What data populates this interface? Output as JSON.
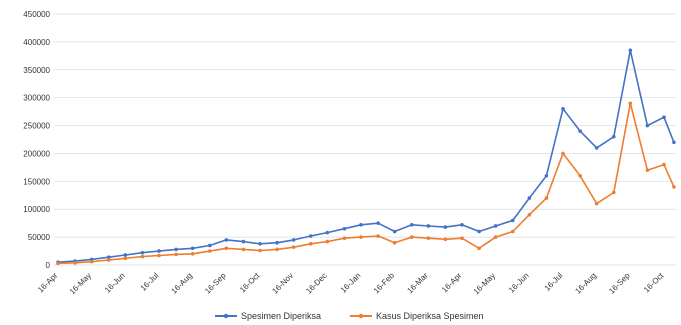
{
  "chart_data": {
    "type": "line",
    "title": "",
    "xlabel": "",
    "ylabel": "",
    "ylim": [
      0,
      450000
    ],
    "yticks": [
      0,
      50000,
      100000,
      150000,
      200000,
      250000,
      300000,
      350000,
      400000,
      450000
    ],
    "ytick_labels": [
      "0",
      "50000",
      "100000",
      "150000",
      "200000",
      "250000",
      "300000",
      "350000",
      "400000",
      "450000"
    ],
    "xtick_labels": [
      "16-Apr",
      "16-May",
      "16-Jun",
      "16-Jul",
      "16-Aug",
      "16-Sep",
      "16-Oct",
      "16-Nov",
      "16-Dec",
      "16-Jan",
      "16-Feb",
      "16-Mar",
      "16-Apr",
      "16-May",
      "16-Jun",
      "16-Jul",
      "16-Aug",
      "16-Sep",
      "16-Oct"
    ],
    "grid": true,
    "legend_position": "bottom",
    "series": [
      {
        "name": "Spesimen Diperiksa",
        "color": "#4472C4",
        "x": [
          "16-Apr",
          "1-May",
          "16-May",
          "1-Jun",
          "16-Jun",
          "1-Jul",
          "16-Jul",
          "1-Aug",
          "16-Aug",
          "1-Sep",
          "16-Sep",
          "1-Oct",
          "16-Oct",
          "1-Nov",
          "16-Nov",
          "1-Dec",
          "16-Dec",
          "1-Jan",
          "16-Jan",
          "1-Feb",
          "16-Feb",
          "1-Mar",
          "16-Mar",
          "1-Apr",
          "16-Apr",
          "1-May",
          "16-May",
          "1-Jun",
          "16-Jun",
          "1-Jul",
          "16-Jul",
          "1-Aug",
          "16-Aug",
          "1-Sep",
          "16-Sep",
          "1-Oct",
          "16-Oct",
          "25-Oct"
        ],
        "values": [
          5000,
          7000,
          10000,
          14000,
          18000,
          22000,
          25000,
          28000,
          30000,
          35000,
          45000,
          42000,
          38000,
          40000,
          45000,
          52000,
          58000,
          65000,
          72000,
          75000,
          60000,
          72000,
          70000,
          68000,
          72000,
          60000,
          70000,
          80000,
          120000,
          160000,
          280000,
          240000,
          210000,
          230000,
          385000,
          250000,
          265000,
          220000
        ]
      },
      {
        "name": "Kasus Diperiksa Spesimen",
        "color": "#ED7D31",
        "x": [
          "16-Apr",
          "1-May",
          "16-May",
          "1-Jun",
          "16-Jun",
          "1-Jul",
          "16-Jul",
          "1-Aug",
          "16-Aug",
          "1-Sep",
          "16-Sep",
          "1-Oct",
          "16-Oct",
          "1-Nov",
          "16-Nov",
          "1-Dec",
          "16-Dec",
          "1-Jan",
          "16-Jan",
          "1-Feb",
          "16-Feb",
          "1-Mar",
          "16-Mar",
          "1-Apr",
          "16-Apr",
          "1-May",
          "16-May",
          "1-Jun",
          "16-Jun",
          "1-Jul",
          "16-Jul",
          "1-Aug",
          "16-Aug",
          "1-Sep",
          "16-Sep",
          "1-Oct",
          "16-Oct",
          "25-Oct"
        ],
        "values": [
          3000,
          4000,
          6000,
          9000,
          12000,
          15000,
          17000,
          19000,
          20000,
          25000,
          30000,
          28000,
          26000,
          28000,
          32000,
          38000,
          42000,
          48000,
          50000,
          52000,
          40000,
          50000,
          48000,
          46000,
          48000,
          30000,
          50000,
          60000,
          90000,
          120000,
          200000,
          160000,
          110000,
          130000,
          290000,
          170000,
          180000,
          140000
        ]
      }
    ]
  }
}
